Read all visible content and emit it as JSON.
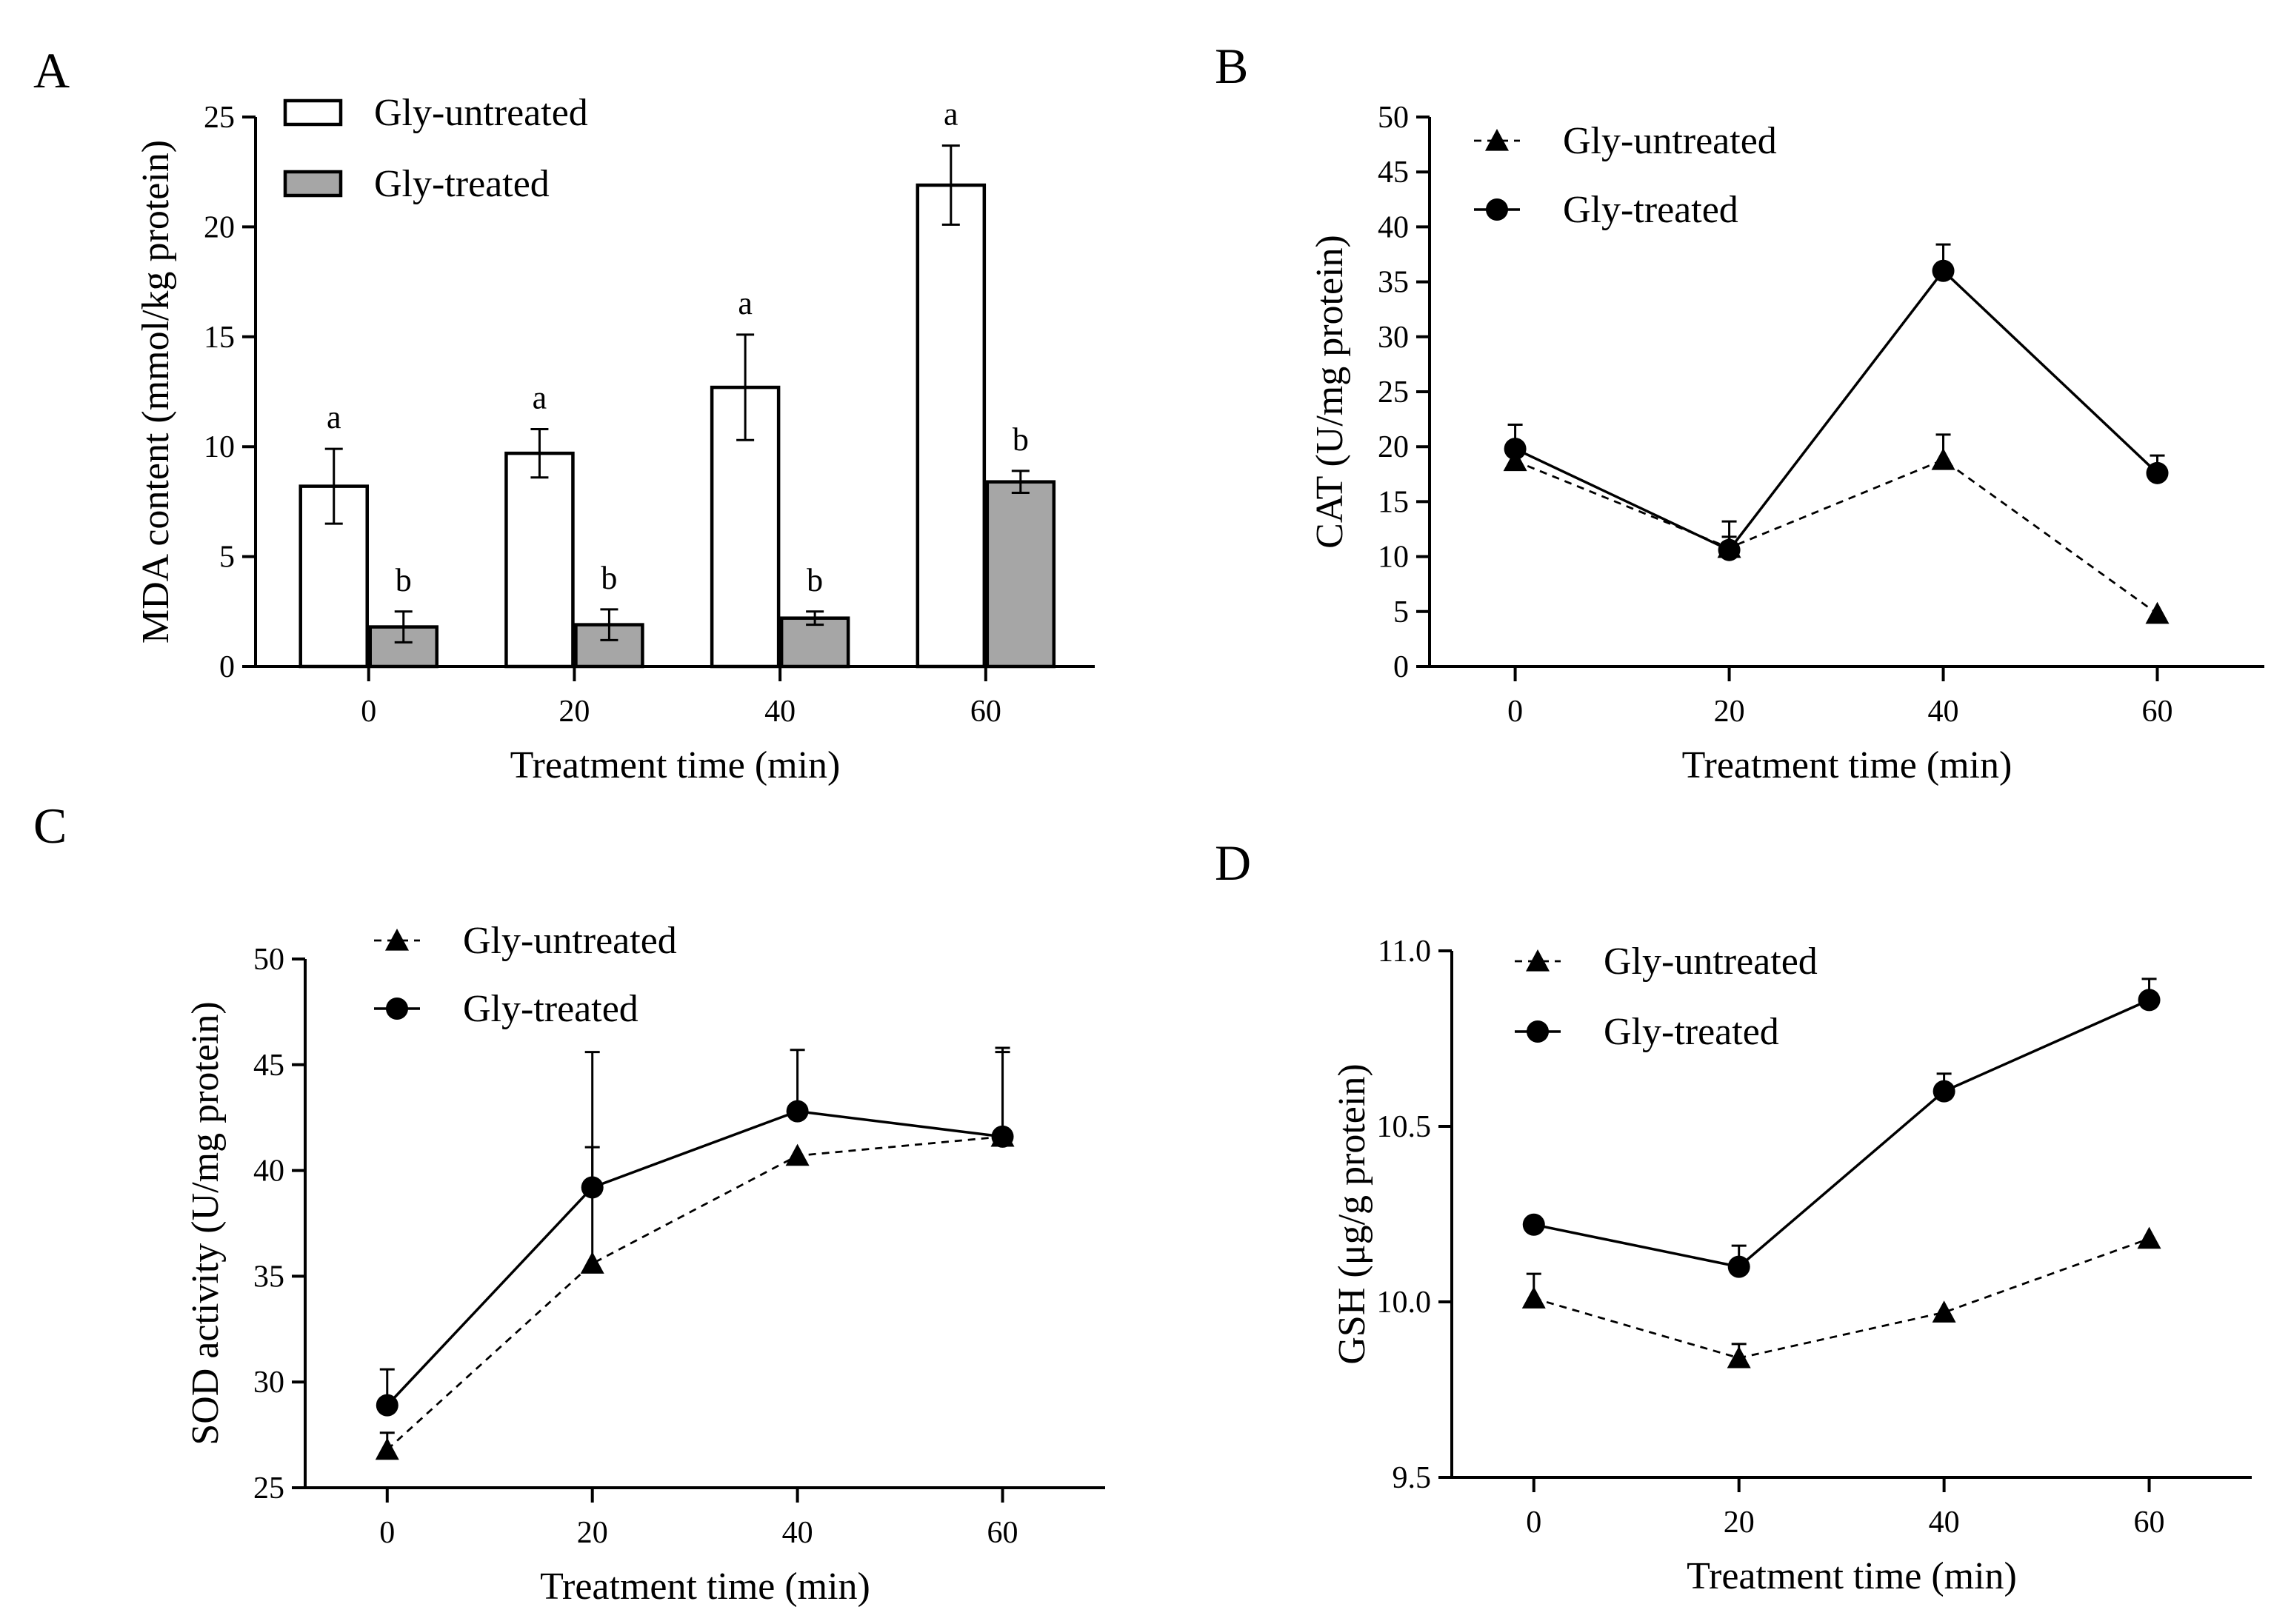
{
  "chart_data": [
    {
      "type": "bar",
      "panel": "A",
      "title": "",
      "xlabel": "Treatment time (min)",
      "ylabel": "MDA content (mmol/kg protein)",
      "categories": [
        "0",
        "20",
        "40",
        "60"
      ],
      "ylim": [
        0,
        25
      ],
      "yticks": [
        "0",
        "5",
        "10",
        "15",
        "20",
        "25"
      ],
      "series": [
        {
          "name": "Gly-untreated",
          "color": "#ffffff",
          "values": [
            8.2,
            9.7,
            12.7,
            21.9
          ],
          "errors": [
            1.7,
            1.1,
            2.4,
            1.8
          ],
          "labels": [
            "a",
            "a",
            "a",
            "a"
          ]
        },
        {
          "name": "Gly-treated",
          "color": "#a6a6a6",
          "values": [
            1.8,
            1.9,
            2.2,
            8.4
          ],
          "errors": [
            0.7,
            0.7,
            0.3,
            0.5
          ],
          "labels": [
            "b",
            "b",
            "b",
            "b"
          ]
        }
      ],
      "legend_position": "top-left"
    },
    {
      "type": "line",
      "panel": "B",
      "title": "",
      "xlabel": "Treatment time (min)",
      "ylabel": "CAT (U/mg protein)",
      "x": [
        0,
        20,
        40,
        60
      ],
      "xticks": [
        "0",
        "20",
        "40",
        "60"
      ],
      "ylim": [
        0,
        50
      ],
      "yticks": [
        "0",
        "5",
        "10",
        "15",
        "20",
        "25",
        "30",
        "35",
        "40",
        "45",
        "50"
      ],
      "series": [
        {
          "name": "Gly-untreated",
          "marker": "triangle",
          "line": "dashed",
          "values": [
            18.7,
            10.8,
            18.8,
            4.8
          ],
          "errors": [
            1.0,
            1.0,
            2.3,
            0.0
          ]
        },
        {
          "name": "Gly-treated",
          "marker": "circle",
          "line": "solid",
          "values": [
            19.8,
            10.6,
            36.0,
            17.6
          ],
          "errors": [
            2.2,
            2.6,
            2.4,
            1.6
          ]
        }
      ],
      "legend_position": "top-left"
    },
    {
      "type": "line",
      "panel": "C",
      "title": "",
      "xlabel": "Treatment time (min)",
      "ylabel": "SOD activity (U/mg protein)",
      "x": [
        0,
        20,
        40,
        60
      ],
      "xticks": [
        "0",
        "20",
        "40",
        "60"
      ],
      "ylim": [
        25,
        50
      ],
      "yticks": [
        "25",
        "30",
        "35",
        "40",
        "45",
        "50"
      ],
      "series": [
        {
          "name": "Gly-untreated",
          "marker": "triangle",
          "line": "dashed",
          "values": [
            26.8,
            35.6,
            40.7,
            41.6
          ],
          "errors": [
            0.8,
            5.5,
            0.0,
            4.2
          ]
        },
        {
          "name": "Gly-treated",
          "marker": "circle",
          "line": "solid",
          "values": [
            28.9,
            39.2,
            42.8,
            41.6
          ],
          "errors": [
            1.7,
            6.4,
            2.9,
            4.0
          ]
        }
      ],
      "legend_position": "top-left"
    },
    {
      "type": "line",
      "panel": "D",
      "title": "",
      "xlabel": "Treatment time (min)",
      "ylabel": "GSH (μg/g protein)",
      "x": [
        0,
        20,
        40,
        60
      ],
      "xticks": [
        "0",
        "20",
        "40",
        "60"
      ],
      "ylim": [
        9.5,
        11.0
      ],
      "yticks": [
        "9.5",
        "10.0",
        "10.5",
        "11.0"
      ],
      "series": [
        {
          "name": "Gly-untreated",
          "marker": "triangle",
          "line": "dashed",
          "values": [
            10.01,
            9.84,
            9.97,
            10.18
          ],
          "errors": [
            0.07,
            0.04,
            0.0,
            0.0
          ]
        },
        {
          "name": "Gly-treated",
          "marker": "circle",
          "line": "solid",
          "values": [
            10.22,
            10.1,
            10.6,
            10.86
          ],
          "errors": [
            0.02,
            0.06,
            0.05,
            0.06
          ]
        }
      ],
      "legend_position": "top-left"
    }
  ]
}
